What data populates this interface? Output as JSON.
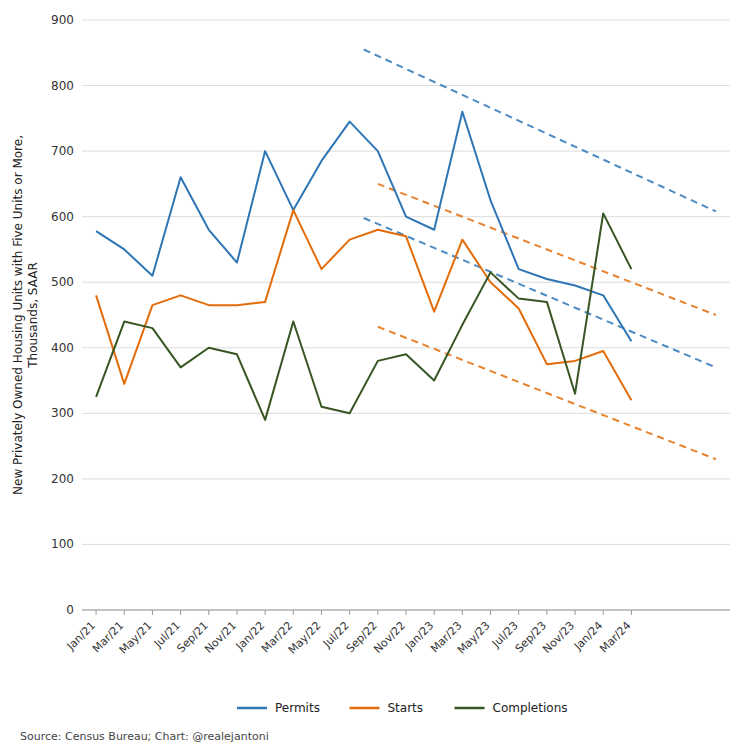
{
  "chart_data": {
    "type": "line",
    "y_label": "New Privately Owned Housing Units with Five Units or More,\nThousands, SAAR",
    "annotations": [
      "Source: Census Bureau; Chart: @realejantoni"
    ],
    "categories": [
      "Jan/21",
      "Mar/21",
      "May/21",
      "Jul/21",
      "Sep/21",
      "Nov/21",
      "Jan/22",
      "Mar/22",
      "May/22",
      "Jul/22",
      "Sep/22",
      "Nov/22",
      "Jan/23",
      "Mar/23",
      "May/23",
      "Jul/23",
      "Sep/23",
      "Nov/23",
      "Jan/24",
      "Mar/24"
    ],
    "series": [
      {
        "name": "Permits",
        "color": "#2e75b6",
        "values": [
          578,
          550,
          510,
          660,
          580,
          530,
          700,
          610,
          685,
          745,
          700,
          600,
          580,
          760,
          625,
          520,
          505,
          495,
          480,
          410
        ]
      },
      {
        "name": "Starts",
        "color": "#e36c0a",
        "values": [
          480,
          345,
          465,
          480,
          465,
          465,
          470,
          610,
          520,
          565,
          580,
          570,
          455,
          565,
          500,
          460,
          375,
          380,
          395,
          320
        ]
      },
      {
        "name": "Completions",
        "color": "#375623",
        "values": [
          325,
          440,
          430,
          370,
          400,
          390,
          290,
          440,
          310,
          300,
          380,
          390,
          350,
          435,
          515,
          475,
          470,
          330,
          605,
          520
        ]
      },
      {
        "color": "#2e75b6",
        "line_style": "dashed",
        "x": [
          9.5,
          22
        ],
        "values": [
          855,
          608
        ]
      },
      {
        "color": "#2e75b6",
        "line_style": "dashed",
        "x": [
          9.5,
          22
        ],
        "values": [
          598,
          370
        ]
      },
      {
        "color": "#e36c0a",
        "line_style": "dashed",
        "x": [
          10.0,
          22
        ],
        "values": [
          650,
          450
        ]
      },
      {
        "color": "#e36c0a",
        "line_style": "dashed",
        "x": [
          10.0,
          22
        ],
        "values": [
          432,
          230
        ]
      }
    ],
    "xlim": [
      -0.5,
      22.5
    ],
    "ylim": [
      0,
      900
    ],
    "yticks": [
      0,
      100,
      200,
      300,
      400,
      500,
      600,
      700,
      800,
      900
    ],
    "grid": true,
    "legend": "bottom"
  }
}
